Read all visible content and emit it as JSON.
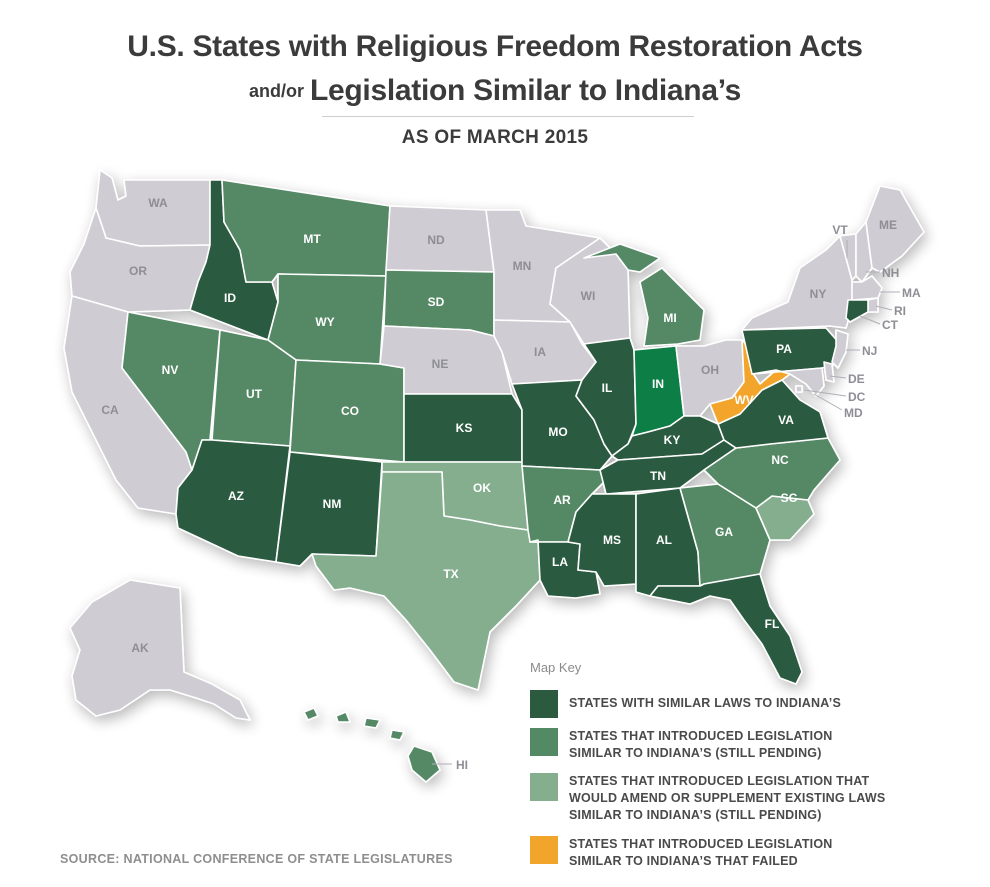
{
  "title": {
    "line1": "U.S. States with Religious Freedom Restoration Acts",
    "line2_prefix": "and/or",
    "line2_main": "Legislation Similar to Indiana’s",
    "subtitle": "AS OF MARCH 2015"
  },
  "colors": {
    "similar_laws": "#2c5a3f",
    "introduced_pending": "#548966",
    "amend_pending": "#85ae8f",
    "failed": "#f2a52b",
    "indiana": "#0c7e45",
    "none": "#cfcdd3"
  },
  "states": {
    "WA": "none",
    "OR": "none",
    "CA": "none",
    "ID": "similar_laws",
    "NV": "introduced_pending",
    "MT": "introduced_pending",
    "WY": "introduced_pending",
    "UT": "introduced_pending",
    "AZ": "similar_laws",
    "CO": "introduced_pending",
    "NM": "similar_laws",
    "ND": "none",
    "SD": "introduced_pending",
    "NE": "none",
    "KS": "similar_laws",
    "OK": "amend_pending",
    "TX": "amend_pending",
    "MN": "none",
    "IA": "none",
    "MO": "similar_laws",
    "AR": "introduced_pending",
    "LA": "similar_laws",
    "WI": "none",
    "IL": "similar_laws",
    "MI": "introduced_pending",
    "IN": "indiana",
    "OH": "none",
    "KY": "similar_laws",
    "TN": "similar_laws",
    "MS": "similar_laws",
    "AL": "similar_laws",
    "GA": "introduced_pending",
    "FL": "similar_laws",
    "SC": "amend_pending",
    "NC": "introduced_pending",
    "VA": "similar_laws",
    "WV": "failed",
    "PA": "similar_laws",
    "NY": "none",
    "VT": "none",
    "NH": "none",
    "ME": "none",
    "MA": "none",
    "RI": "none",
    "CT": "similar_laws",
    "NJ": "none",
    "DE": "none",
    "MD": "none",
    "DC": "none",
    "AK": "none",
    "HI": "introduced_pending"
  },
  "key": {
    "title": "Map Key",
    "items": [
      {
        "text": "STATES WITH SIMILAR LAWS TO INDIANA’S",
        "color": "#2c5a3f"
      },
      {
        "text": "STATES THAT INTRODUCED LEGISLATION SIMILAR TO INDIANA’S (STILL PENDING)",
        "color": "#548966"
      },
      {
        "text": "STATES THAT INTRODUCED LEGISLATION THAT WOULD AMEND OR SUPPLEMENT EXISTING LAWS SIMILAR TO INDIANA’S (STILL PENDING)",
        "color": "#85ae8f"
      },
      {
        "text": "STATES THAT INTRODUCED LEGISLATION SIMILAR TO INDIANA’S THAT FAILED",
        "color": "#f2a52b"
      }
    ]
  },
  "source": "SOURCE: NATIONAL CONFERENCE OF STATE LEGISLATURES"
}
